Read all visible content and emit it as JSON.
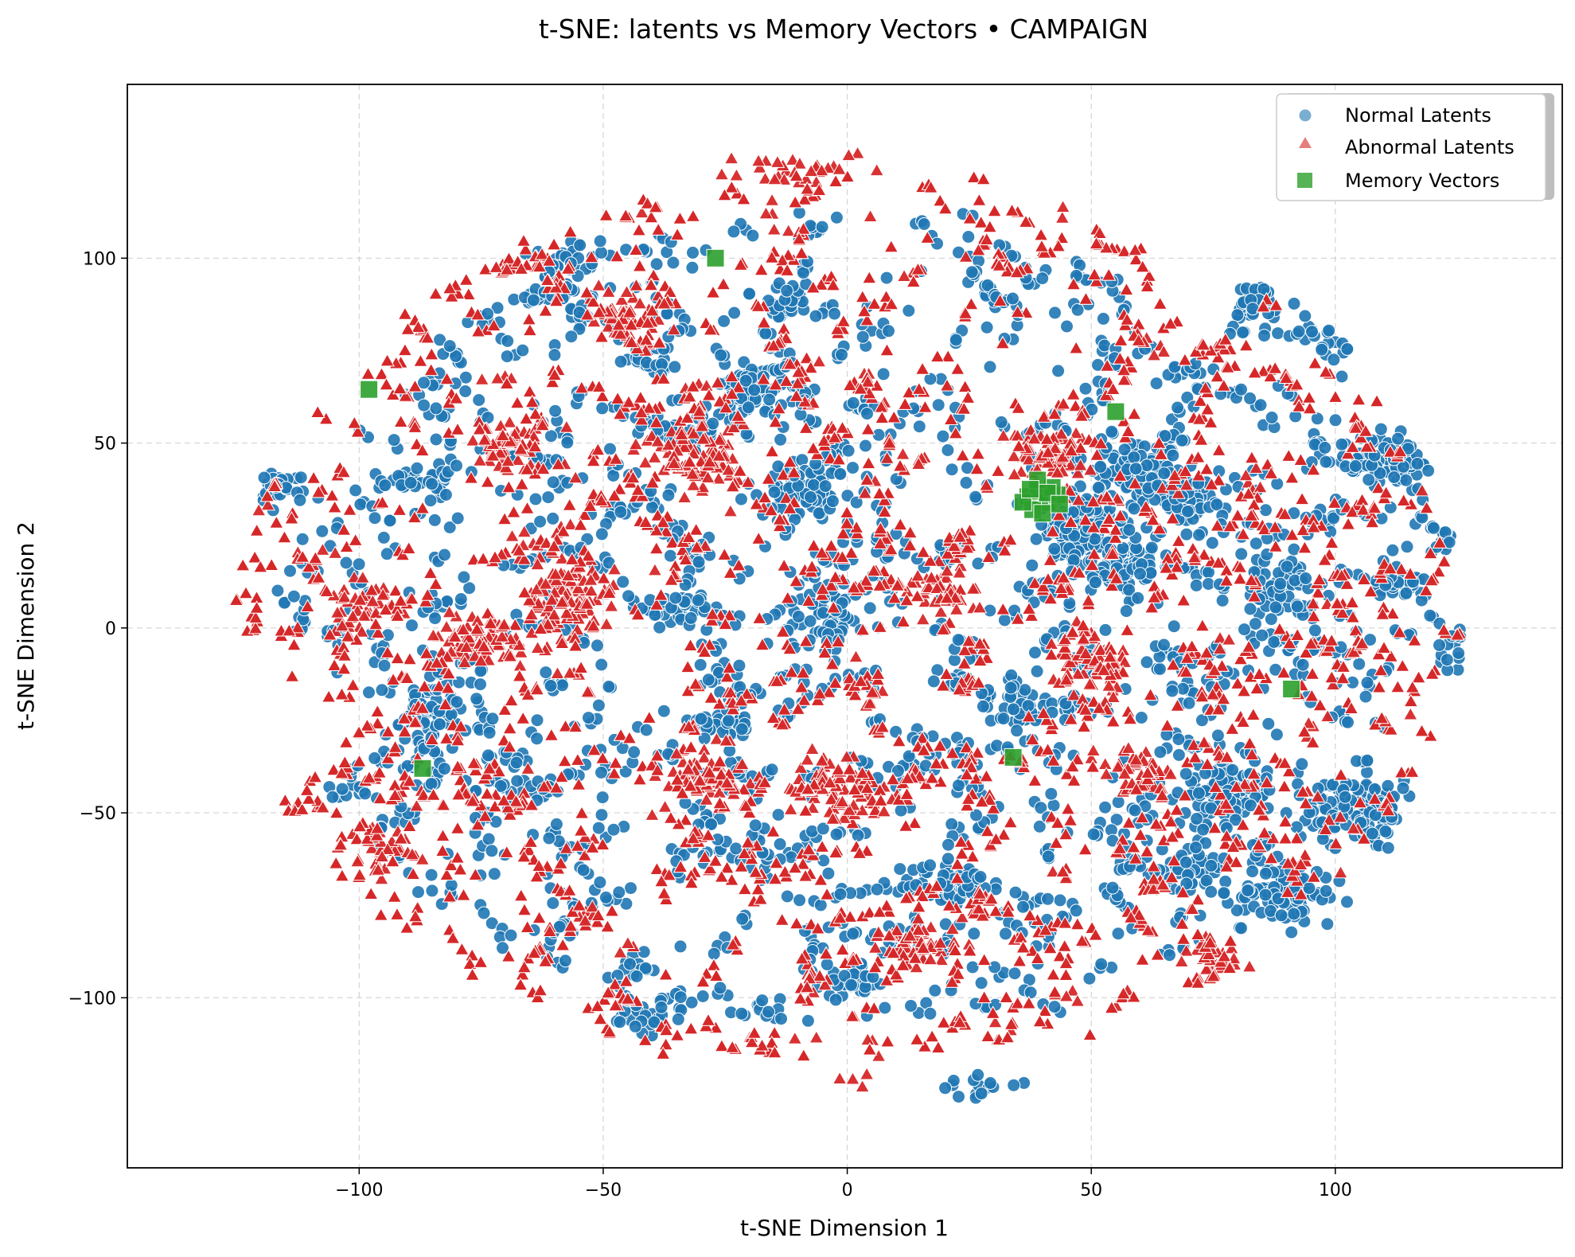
{
  "chart_data": {
    "type": "scatter",
    "title": "t-SNE: latents vs Memory Vectors • CAMPAIGN",
    "xlabel": "t-SNE Dimension 1",
    "ylabel": "t-SNE Dimension 2",
    "xlim": [
      -147.5,
      146.5
    ],
    "ylim": [
      -146,
      147
    ],
    "xticks": [
      -100,
      -50,
      0,
      50,
      100
    ],
    "yticks": [
      -100,
      -50,
      0,
      50,
      100
    ],
    "xtick_labels": [
      "−100",
      "−50",
      "0",
      "50",
      "100"
    ],
    "ytick_labels": [
      "−100",
      "−50",
      "0",
      "50",
      "100"
    ],
    "grid": true,
    "legend_position": "top-right",
    "colors": {
      "normal": "#1f77b4",
      "abnormal": "#d62728",
      "memory": "#2ca02c"
    },
    "series": [
      {
        "name": "Normal Latents",
        "marker": "circle",
        "color": "#1f77b4",
        "clusters": [
          {
            "cx": 104,
            "cy": 82,
            "rx": 15,
            "ry": 9,
            "n": 120
          },
          {
            "cx": 84,
            "cy": 88,
            "rx": 5,
            "ry": 4,
            "n": 45
          },
          {
            "cx": 112,
            "cy": 45,
            "rx": 8,
            "ry": 7,
            "n": 90
          },
          {
            "cx": 123,
            "cy": 25,
            "rx": 6,
            "ry": 5,
            "n": 40
          },
          {
            "cx": 127,
            "cy": -5,
            "rx": 6,
            "ry": 7,
            "n": 50
          },
          {
            "cx": 113,
            "cy": 12,
            "rx": 5,
            "ry": 4,
            "n": 35
          },
          {
            "cx": 105,
            "cy": -50,
            "rx": 11,
            "ry": 8,
            "n": 110
          },
          {
            "cx": 78,
            "cy": -45,
            "rx": 8,
            "ry": 7,
            "n": 75
          },
          {
            "cx": 90,
            "cy": -72,
            "rx": 9,
            "ry": 7,
            "n": 80
          },
          {
            "cx": 70,
            "cy": -65,
            "rx": 7,
            "ry": 5,
            "n": 50
          },
          {
            "cx": 47,
            "cy": 27,
            "rx": 7,
            "ry": 10,
            "n": 95
          },
          {
            "cx": 58,
            "cy": 42,
            "rx": 8,
            "ry": 8,
            "n": 90
          },
          {
            "cx": 70,
            "cy": 35,
            "rx": 6,
            "ry": 5,
            "n": 50
          },
          {
            "cx": 56,
            "cy": 18,
            "rx": 6,
            "ry": 7,
            "n": 55
          },
          {
            "cx": 88,
            "cy": 10,
            "rx": 5,
            "ry": 8,
            "n": 45
          },
          {
            "cx": 35,
            "cy": -20,
            "rx": 7,
            "ry": 6,
            "n": 45
          },
          {
            "cx": -5,
            "cy": 3,
            "rx": 7,
            "ry": 6,
            "n": 50
          },
          {
            "cx": -8,
            "cy": 38,
            "rx": 7,
            "ry": 8,
            "n": 70
          },
          {
            "cx": -20,
            "cy": 65,
            "rx": 8,
            "ry": 7,
            "n": 65
          },
          {
            "cx": -12,
            "cy": 87,
            "rx": 4,
            "ry": 3,
            "n": 25
          },
          {
            "cx": -35,
            "cy": 5,
            "rx": 6,
            "ry": 5,
            "n": 40
          },
          {
            "cx": -25,
            "cy": -25,
            "rx": 6,
            "ry": 5,
            "n": 35
          },
          {
            "cx": -85,
            "cy": -25,
            "rx": 7,
            "ry": 8,
            "n": 55
          },
          {
            "cx": -125,
            "cy": -48,
            "rx": 4,
            "ry": 4,
            "n": 15
          },
          {
            "cx": -118,
            "cy": 38,
            "rx": 6,
            "ry": 4,
            "n": 35
          },
          {
            "cx": -88,
            "cy": 40,
            "rx": 8,
            "ry": 4,
            "n": 35
          },
          {
            "cx": -55,
            "cy": 100,
            "rx": 7,
            "ry": 5,
            "n": 30
          },
          {
            "cx": 20,
            "cy": -70,
            "rx": 8,
            "ry": 5,
            "n": 40
          },
          {
            "cx": 0,
            "cy": -95,
            "rx": 6,
            "ry": 5,
            "n": 30
          },
          {
            "cx": -40,
            "cy": -105,
            "rx": 6,
            "ry": 5,
            "n": 25
          },
          {
            "cx": 28,
            "cy": -125,
            "rx": 6,
            "ry": 4,
            "n": 20
          },
          {
            "cx": 0,
            "cy": 0,
            "rx": 115,
            "ry": 112,
            "n": 800
          }
        ]
      },
      {
        "name": "Abnormal Latents",
        "marker": "triangle",
        "color": "#d62728",
        "clusters": [
          {
            "cx": -58,
            "cy": 8,
            "rx": 8,
            "ry": 10,
            "n": 110
          },
          {
            "cx": -75,
            "cy": -5,
            "rx": 8,
            "ry": 7,
            "n": 80
          },
          {
            "cx": -30,
            "cy": 45,
            "rx": 10,
            "ry": 8,
            "n": 90
          },
          {
            "cx": -70,
            "cy": 50,
            "rx": 6,
            "ry": 6,
            "n": 50
          },
          {
            "cx": 20,
            "cy": 10,
            "rx": 7,
            "ry": 6,
            "n": 50
          },
          {
            "cx": 42,
            "cy": 47,
            "rx": 8,
            "ry": 6,
            "n": 70
          },
          {
            "cx": 0,
            "cy": -45,
            "rx": 8,
            "ry": 8,
            "n": 70
          },
          {
            "cx": -30,
            "cy": -40,
            "rx": 8,
            "ry": 7,
            "n": 60
          },
          {
            "cx": 15,
            "cy": -85,
            "rx": 8,
            "ry": 6,
            "n": 50
          },
          {
            "cx": -45,
            "cy": 85,
            "rx": 6,
            "ry": 6,
            "n": 45
          },
          {
            "cx": -10,
            "cy": 125,
            "rx": 12,
            "ry": 5,
            "n": 35
          },
          {
            "cx": 50,
            "cy": -10,
            "rx": 7,
            "ry": 7,
            "n": 60
          },
          {
            "cx": 60,
            "cy": -40,
            "rx": 6,
            "ry": 6,
            "n": 45
          },
          {
            "cx": 75,
            "cy": -90,
            "rx": 6,
            "ry": 5,
            "n": 40
          },
          {
            "cx": -100,
            "cy": 5,
            "rx": 6,
            "ry": 6,
            "n": 40
          },
          {
            "cx": -95,
            "cy": -60,
            "rx": 6,
            "ry": 5,
            "n": 35
          },
          {
            "cx": 0,
            "cy": 0,
            "rx": 125,
            "ry": 122,
            "n": 1700
          }
        ]
      },
      {
        "name": "Memory Vectors",
        "marker": "square",
        "color": "#2ca02c",
        "points": [
          [
            -27,
            100
          ],
          [
            -98,
            64.5
          ],
          [
            -87,
            -38
          ],
          [
            34,
            -35
          ],
          [
            91,
            -16.5
          ],
          [
            55,
            58.5
          ],
          [
            37,
            35.5
          ],
          [
            39,
            37
          ],
          [
            41,
            34
          ],
          [
            43,
            36
          ],
          [
            38,
            32
          ],
          [
            40,
            31
          ],
          [
            42,
            38
          ],
          [
            36,
            34
          ],
          [
            39,
            40
          ],
          [
            41,
            36.5
          ],
          [
            43.5,
            33.5
          ],
          [
            37.5,
            37.5
          ]
        ]
      }
    ]
  }
}
